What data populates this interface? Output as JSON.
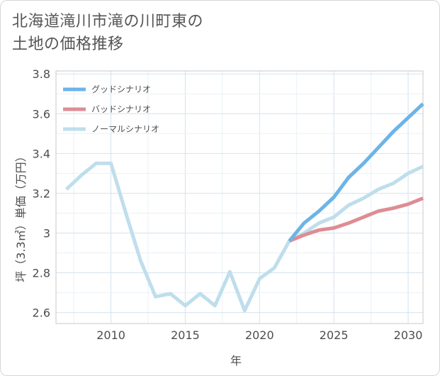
{
  "title_line1": "北海道滝川市滝の川町東の",
  "title_line2": "土地の価格推移",
  "chart_data": {
    "type": "line",
    "xlabel": "年",
    "ylabel": "坪（3.3㎡）単価（万円）",
    "xlim": [
      2006.3,
      2031
    ],
    "ylim": [
      2.545,
      3.815
    ],
    "x_ticks": [
      2010,
      2015,
      2020,
      2025,
      2030
    ],
    "y_ticks": [
      2.6,
      2.8,
      3,
      3.2,
      3.4,
      3.6,
      3.8
    ],
    "y_tick_labels": [
      "2.6",
      "2.8",
      "3",
      "3.2",
      "3.4",
      "3.6",
      "3.8"
    ],
    "legend_position": "top-left",
    "series": [
      {
        "name": "グッドシナリオ",
        "color": "#6cb4e8",
        "x": [
          2022,
          2023,
          2024,
          2025,
          2026,
          2027,
          2028,
          2029,
          2030,
          2031
        ],
        "values": [
          2.96,
          3.05,
          3.11,
          3.18,
          3.28,
          3.35,
          3.43,
          3.51,
          3.58,
          3.65
        ]
      },
      {
        "name": "バッドシナリオ",
        "color": "#de8c94",
        "x": [
          2022,
          2023,
          2024,
          2025,
          2026,
          2027,
          2028,
          2029,
          2030,
          2031
        ],
        "values": [
          2.96,
          2.99,
          3.015,
          3.025,
          3.05,
          3.08,
          3.11,
          3.125,
          3.145,
          3.175
        ]
      },
      {
        "name": "ノーマルシナリオ",
        "color": "#bfdeec",
        "x": [
          2007,
          2008,
          2009,
          2010,
          2011,
          2012,
          2013,
          2014,
          2015,
          2016,
          2017,
          2018,
          2019,
          2020,
          2021,
          2022,
          2023,
          2024,
          2025,
          2026,
          2027,
          2028,
          2029,
          2030,
          2031
        ],
        "values": [
          3.22,
          3.29,
          3.35,
          3.35,
          3.1,
          2.86,
          2.68,
          2.695,
          2.635,
          2.695,
          2.635,
          2.805,
          2.61,
          2.77,
          2.825,
          2.96,
          3.0,
          3.05,
          3.08,
          3.14,
          3.175,
          3.22,
          3.25,
          3.3,
          3.335
        ]
      }
    ]
  }
}
